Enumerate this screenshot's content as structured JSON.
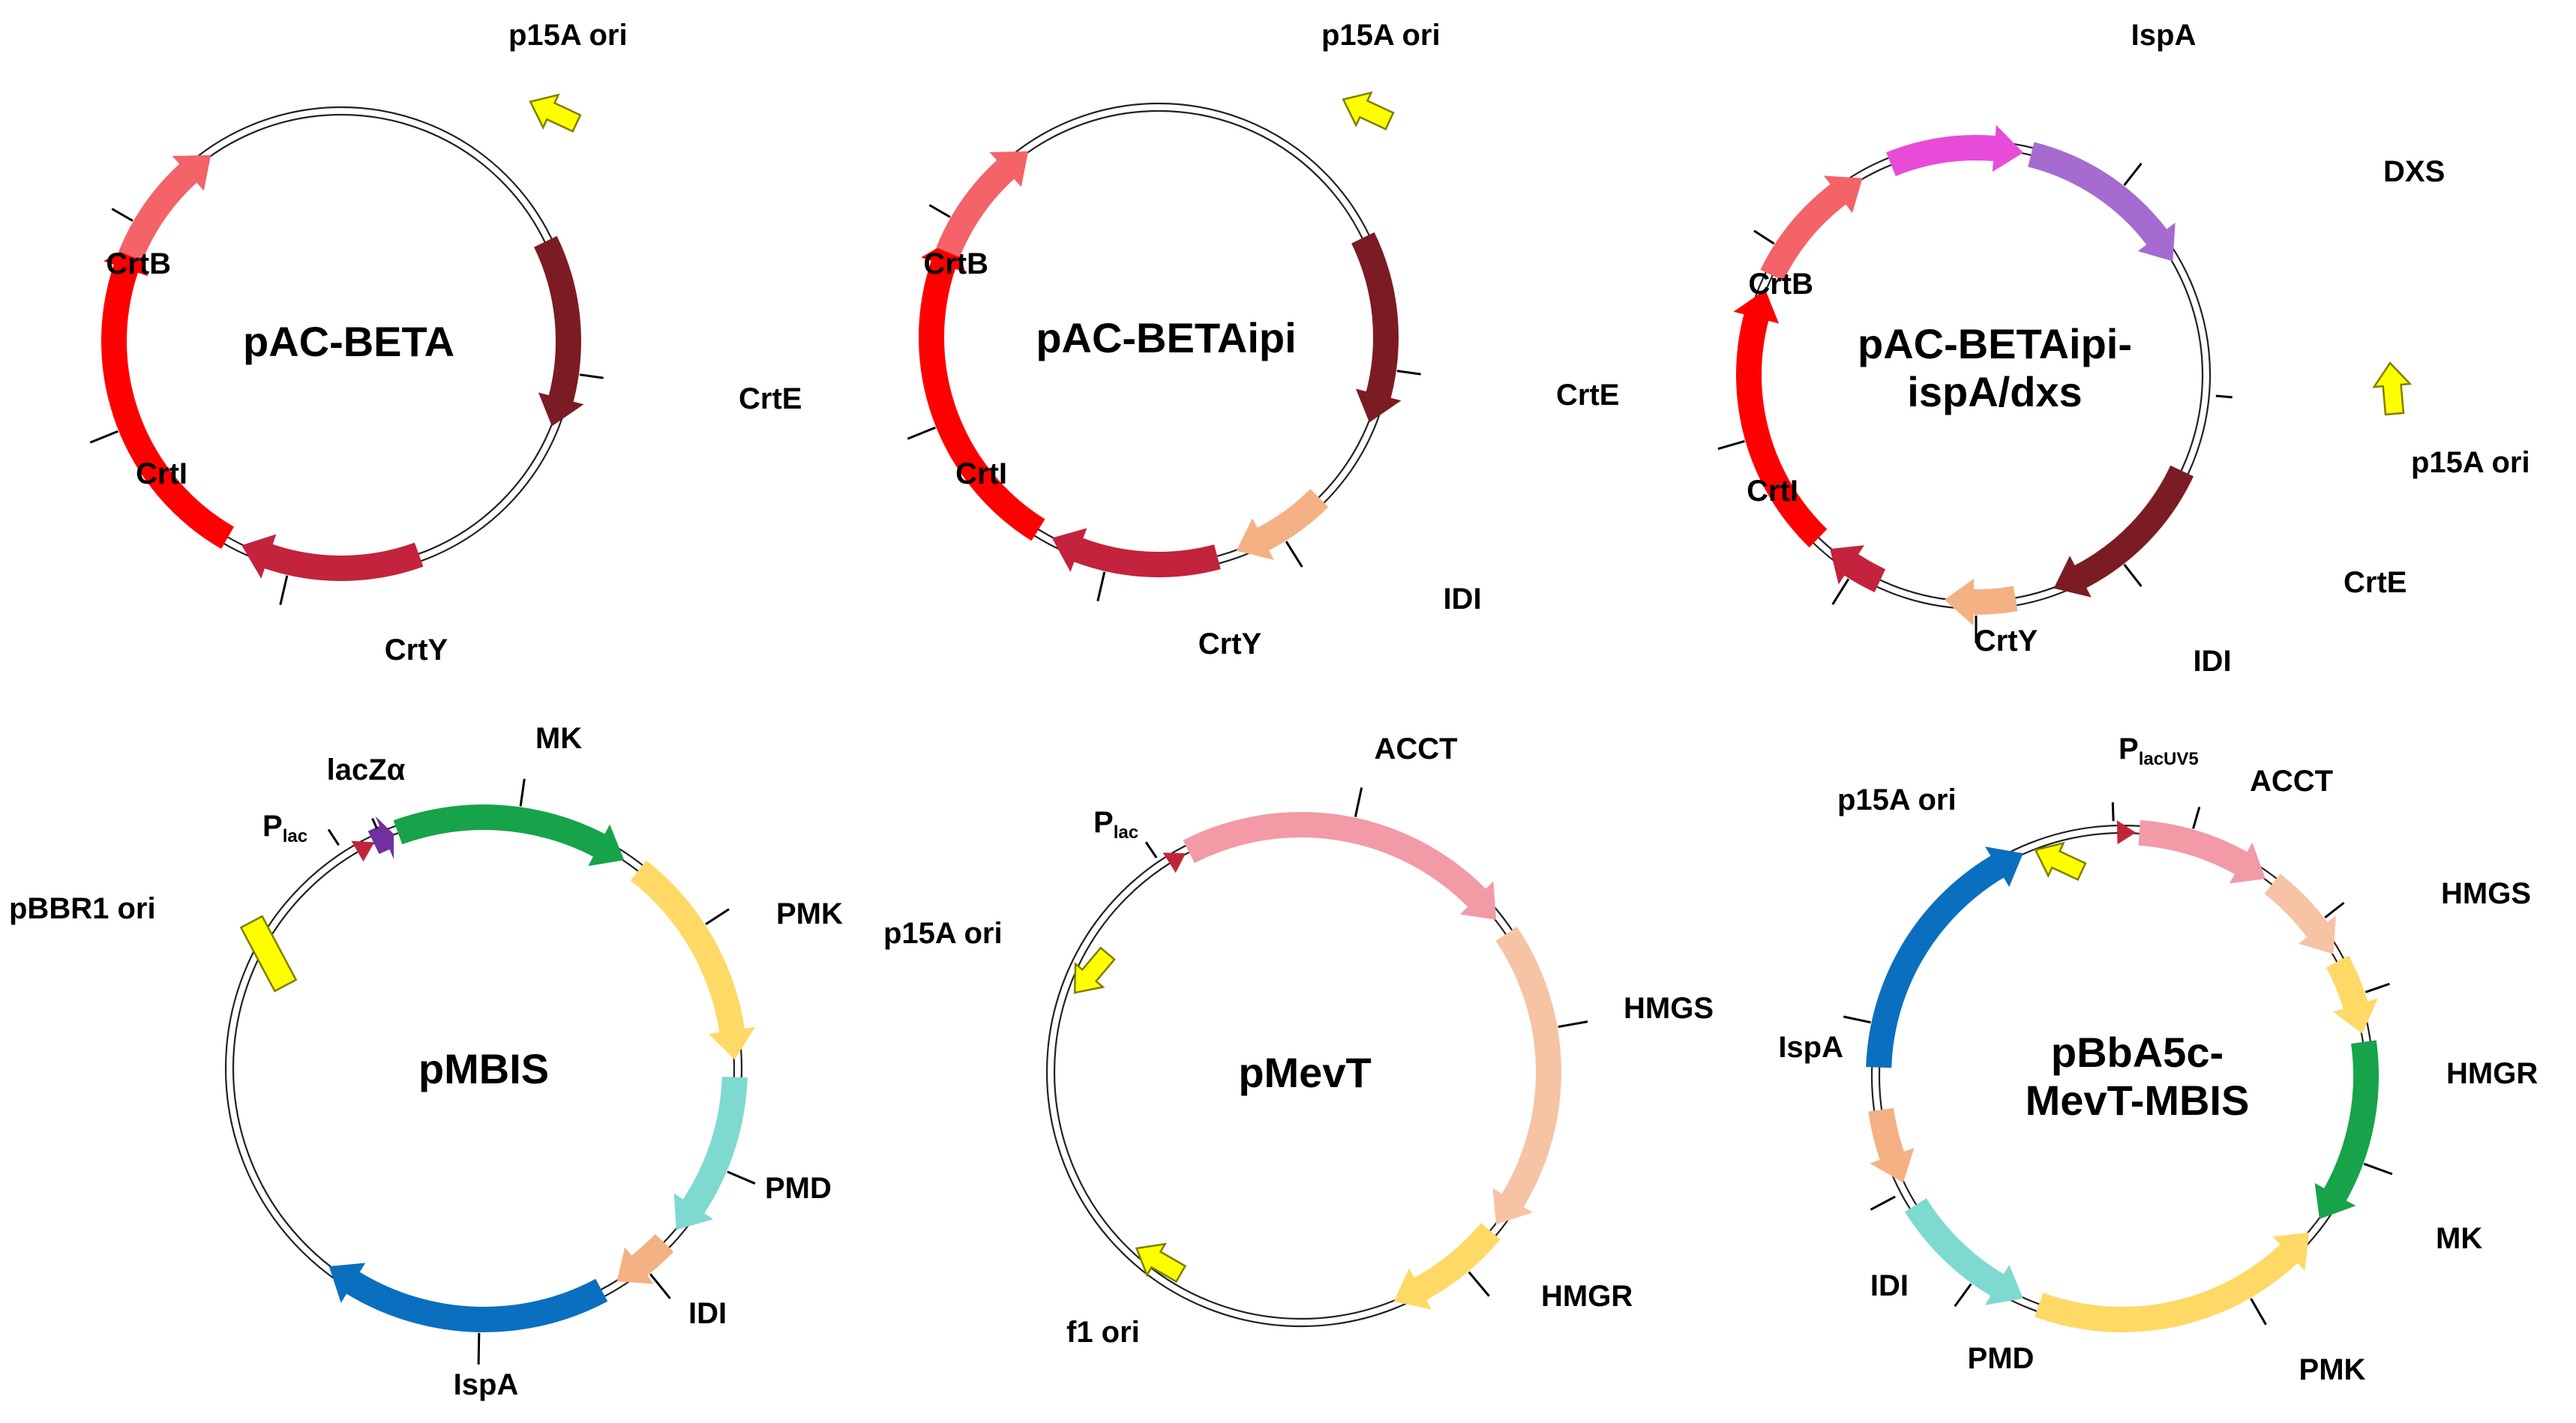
{
  "colors": {
    "crtE": "#7B1C24",
    "crtB": "#F36368",
    "crtI": "#FF0000",
    "crtY": "#C3233C",
    "idi": "#F4B183",
    "ori": "#FFFF00",
    "ori_outline": "#7F7F00",
    "ispA_pink": "#E84BD8",
    "dxs": "#A56BD1",
    "mk": "#17A34A",
    "pmk": "#FFD966",
    "pmd": "#7ED9D0",
    "ispA_blue": "#0B6FBF",
    "lacZ": "#7030A0",
    "promoter": "#C0263A",
    "acct": "#F29AA6",
    "hmgs": "#F6C3A5",
    "hmgr": "#FFD966"
  },
  "plasmids": [
    {
      "name": "pAC-BETA",
      "title_lines": [
        "pAC-BETA"
      ],
      "features": [
        {
          "label": "p15A ori",
          "icon": "ori-arrow-icon"
        },
        {
          "label": "CrtE"
        },
        {
          "label": "CrtY"
        },
        {
          "label": "CrtI"
        },
        {
          "label": "CrtB"
        }
      ]
    },
    {
      "name": "pAC-BETAipi",
      "title_lines": [
        "pAC-BETAipi"
      ],
      "features": [
        {
          "label": "p15A ori",
          "icon": "ori-arrow-icon"
        },
        {
          "label": "CrtE"
        },
        {
          "label": "IDI"
        },
        {
          "label": "CrtY"
        },
        {
          "label": "CrtI"
        },
        {
          "label": "CrtB"
        }
      ]
    },
    {
      "name": "pAC-BETAipi-ispA/dxs",
      "title_lines": [
        "pAC-BETAipi-",
        "ispA/dxs"
      ],
      "features": [
        {
          "label": "IspA"
        },
        {
          "label": "DXS"
        },
        {
          "label": "p15A ori",
          "icon": "ori-arrow-icon"
        },
        {
          "label": "CrtE"
        },
        {
          "label": "IDI"
        },
        {
          "label": "CrtY"
        },
        {
          "label": "CrtI"
        },
        {
          "label": "CrtB"
        }
      ]
    },
    {
      "name": "pMBIS",
      "title_lines": [
        "pMBIS"
      ],
      "features": [
        {
          "label": "MK"
        },
        {
          "label": "lacZα"
        },
        {
          "label": "P",
          "sub": "lac",
          "icon": "promoter-triangle-icon"
        },
        {
          "label": "pBBR1 ori",
          "icon": "ori-box-icon"
        },
        {
          "label": "PMK"
        },
        {
          "label": "PMD"
        },
        {
          "label": "IDI"
        },
        {
          "label": "IspA"
        }
      ]
    },
    {
      "name": "pMevT",
      "title_lines": [
        "pMevT"
      ],
      "features": [
        {
          "label": "ACCT"
        },
        {
          "label": "P",
          "sub": "lac",
          "icon": "promoter-triangle-icon"
        },
        {
          "label": "p15A ori",
          "icon": "ori-arrow-icon"
        },
        {
          "label": "HMGS"
        },
        {
          "label": "HMGR"
        },
        {
          "label": "f1 ori",
          "icon": "ori-arrow-icon"
        }
      ]
    },
    {
      "name": "pBbA5c-MevT-MBIS",
      "title_lines": [
        "pBbA5c-",
        "MevT-MBIS"
      ],
      "features": [
        {
          "label": "P",
          "sub": "lacUV5",
          "icon": "promoter-triangle-icon"
        },
        {
          "label": "ACCT"
        },
        {
          "label": "p15A ori",
          "icon": "ori-arrow-icon"
        },
        {
          "label": "HMGS"
        },
        {
          "label": "HMGR"
        },
        {
          "label": "IspA"
        },
        {
          "label": "MK"
        },
        {
          "label": "IDI"
        },
        {
          "label": "PMD"
        },
        {
          "label": "PMK"
        }
      ]
    }
  ]
}
